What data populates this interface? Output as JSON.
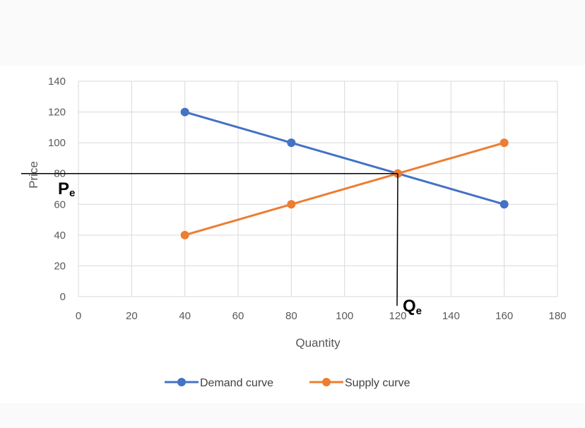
{
  "chart_data": {
    "type": "line",
    "xlabel": "Quantity",
    "ylabel": "Price",
    "xlim": [
      0,
      180
    ],
    "ylim": [
      0,
      140
    ],
    "x_ticks": [
      0,
      20,
      40,
      60,
      80,
      100,
      120,
      140,
      160,
      180
    ],
    "y_ticks": [
      0,
      20,
      40,
      60,
      80,
      100,
      120,
      140
    ],
    "grid": true,
    "legend_position": "bottom",
    "series": [
      {
        "name": "Demand curve",
        "color": "#4472C4",
        "x": [
          40,
          80,
          120,
          160
        ],
        "y": [
          120,
          100,
          80,
          60
        ]
      },
      {
        "name": "Supply curve",
        "color": "#ED7D31",
        "x": [
          40,
          80,
          120,
          160
        ],
        "y": [
          40,
          60,
          80,
          100
        ]
      }
    ],
    "equilibrium": {
      "price": 80,
      "quantity": 120,
      "price_label": "P",
      "price_label_sub": "e",
      "quantity_label": "Q",
      "quantity_label_sub": "e"
    }
  }
}
